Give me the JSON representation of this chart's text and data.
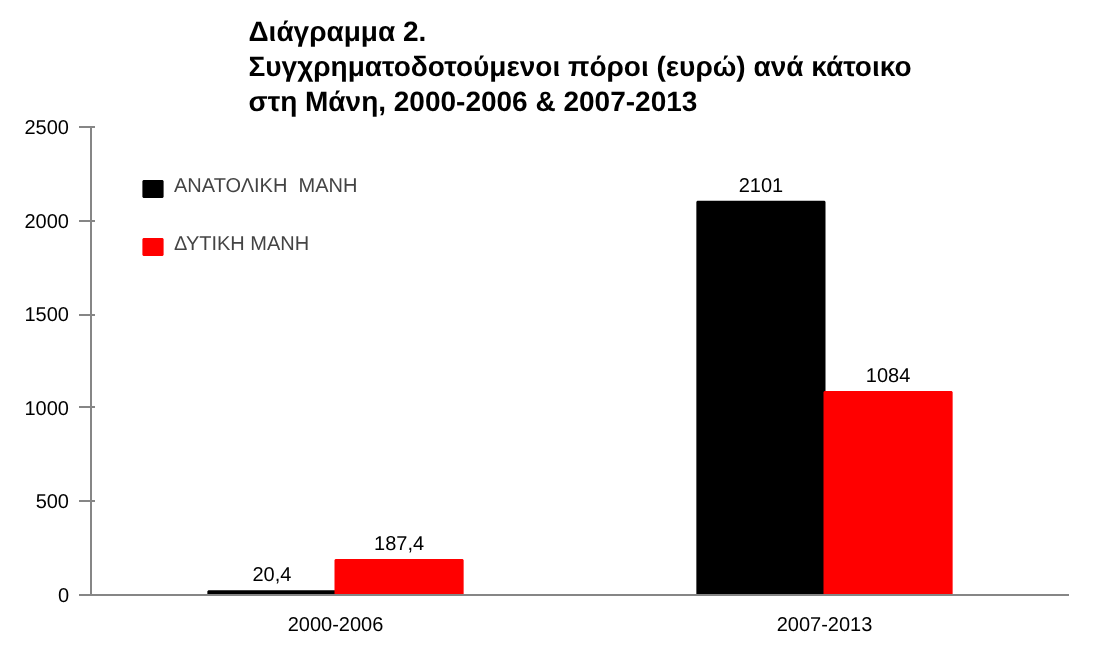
{
  "chart_data": {
    "type": "bar",
    "title": "Διάγραμμα 2.\nΣυγχρηματοδοτούμενοι πόροι (ευρώ) ανά κάτοικο\nστη Μάνη, 2000-2006 & 2007-2013",
    "categories": [
      "2000-2006",
      "2007-2013"
    ],
    "series": [
      {
        "name": "ΑΝΑΤΟΛΙΚΗ  ΜΑΝΗ",
        "color": "#000000",
        "values": [
          20.4,
          2101
        ],
        "value_labels": [
          "20,4",
          "2101"
        ]
      },
      {
        "name": "ΔΥΤΙΚΗ ΜΑΝΗ",
        "color": "#ff0000",
        "values": [
          187.4,
          1084
        ],
        "value_labels": [
          "187,4",
          "1084"
        ]
      }
    ],
    "ylim": [
      0,
      2500
    ],
    "yticks": [
      0,
      500,
      1000,
      1500,
      2000,
      2500
    ],
    "grid": false,
    "legend": "top left"
  }
}
